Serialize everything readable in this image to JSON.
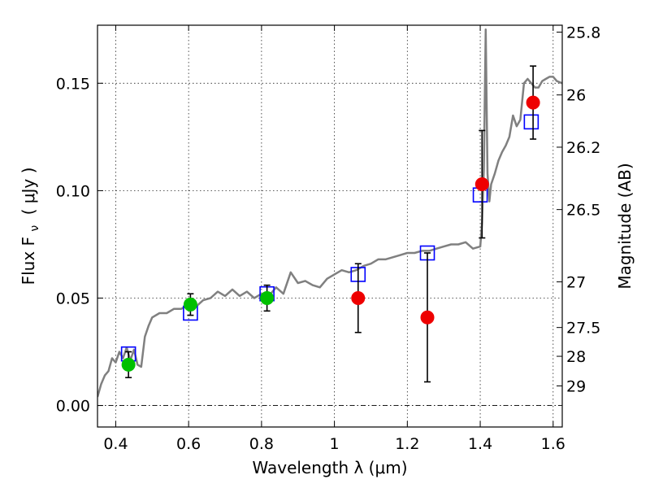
{
  "chart_data": {
    "type": "scatter",
    "xlabel": "Wavelength  λ (μm)",
    "ylabel": "Flux  F",
    "ylabel_sub": "ν",
    "ylabel_unit": "(  μJy )",
    "ylabel_right": "Magnitude (AB)",
    "xlim": [
      0.35,
      1.625
    ],
    "ylim": [
      -0.01,
      0.177
    ],
    "x_ticks": [
      {
        "value": 0.4,
        "label": "0.4"
      },
      {
        "value": 0.6,
        "label": "0.6"
      },
      {
        "value": 0.8,
        "label": "0.8"
      },
      {
        "value": 1.0,
        "label": "1"
      },
      {
        "value": 1.2,
        "label": "1.2"
      },
      {
        "value": 1.4,
        "label": "1.4"
      },
      {
        "value": 1.6,
        "label": "1.6"
      }
    ],
    "y_ticks": [
      {
        "value": 0.0,
        "label": "0.00"
      },
      {
        "value": 0.05,
        "label": "0.05"
      },
      {
        "value": 0.1,
        "label": "0.10"
      },
      {
        "value": 0.15,
        "label": "0.15"
      }
    ],
    "magnitude_ticks": [
      {
        "mag": 25.8,
        "label": "25.8"
      },
      {
        "mag": 26.0,
        "label": "26"
      },
      {
        "mag": 26.2,
        "label": "26.2"
      },
      {
        "mag": 26.5,
        "label": "26.5"
      },
      {
        "mag": 27.0,
        "label": "27"
      },
      {
        "mag": 27.5,
        "label": "27.5"
      },
      {
        "mag": 28.0,
        "label": "28"
      },
      {
        "mag": 29.0,
        "label": "29"
      }
    ],
    "grid": true,
    "zero_line": true,
    "series": [
      {
        "kind": "line",
        "color": "#808080",
        "points": [
          [
            0.35,
            0.004
          ],
          [
            0.36,
            0.01
          ],
          [
            0.37,
            0.014
          ],
          [
            0.38,
            0.016
          ],
          [
            0.39,
            0.022
          ],
          [
            0.4,
            0.02
          ],
          [
            0.41,
            0.025
          ],
          [
            0.42,
            0.022
          ],
          [
            0.43,
            0.027
          ],
          [
            0.44,
            0.021
          ],
          [
            0.45,
            0.026
          ],
          [
            0.46,
            0.019
          ],
          [
            0.47,
            0.018
          ],
          [
            0.48,
            0.032
          ],
          [
            0.49,
            0.037
          ],
          [
            0.5,
            0.041
          ],
          [
            0.52,
            0.043
          ],
          [
            0.54,
            0.043
          ],
          [
            0.56,
            0.045
          ],
          [
            0.58,
            0.045
          ],
          [
            0.6,
            0.047
          ],
          [
            0.62,
            0.046
          ],
          [
            0.64,
            0.049
          ],
          [
            0.66,
            0.05
          ],
          [
            0.68,
            0.053
          ],
          [
            0.7,
            0.051
          ],
          [
            0.72,
            0.054
          ],
          [
            0.74,
            0.051
          ],
          [
            0.76,
            0.053
          ],
          [
            0.78,
            0.05
          ],
          [
            0.8,
            0.052
          ],
          [
            0.82,
            0.051
          ],
          [
            0.84,
            0.055
          ],
          [
            0.86,
            0.052
          ],
          [
            0.88,
            0.062
          ],
          [
            0.9,
            0.057
          ],
          [
            0.92,
            0.058
          ],
          [
            0.94,
            0.056
          ],
          [
            0.96,
            0.055
          ],
          [
            0.98,
            0.059
          ],
          [
            1.0,
            0.061
          ],
          [
            1.02,
            0.063
          ],
          [
            1.04,
            0.062
          ],
          [
            1.06,
            0.063
          ],
          [
            1.08,
            0.065
          ],
          [
            1.1,
            0.066
          ],
          [
            1.12,
            0.068
          ],
          [
            1.14,
            0.068
          ],
          [
            1.16,
            0.069
          ],
          [
            1.18,
            0.07
          ],
          [
            1.2,
            0.071
          ],
          [
            1.22,
            0.071
          ],
          [
            1.24,
            0.072
          ],
          [
            1.26,
            0.072
          ],
          [
            1.28,
            0.073
          ],
          [
            1.3,
            0.074
          ],
          [
            1.32,
            0.075
          ],
          [
            1.34,
            0.075
          ],
          [
            1.36,
            0.076
          ],
          [
            1.38,
            0.073
          ],
          [
            1.4,
            0.074
          ],
          [
            1.405,
            0.085
          ],
          [
            1.41,
            0.11
          ],
          [
            1.415,
            0.175
          ],
          [
            1.42,
            0.108
          ],
          [
            1.425,
            0.095
          ],
          [
            1.43,
            0.103
          ],
          [
            1.44,
            0.108
          ],
          [
            1.45,
            0.114
          ],
          [
            1.46,
            0.118
          ],
          [
            1.47,
            0.121
          ],
          [
            1.48,
            0.125
          ],
          [
            1.49,
            0.135
          ],
          [
            1.5,
            0.13
          ],
          [
            1.51,
            0.133
          ],
          [
            1.52,
            0.15
          ],
          [
            1.53,
            0.152
          ],
          [
            1.54,
            0.15
          ],
          [
            1.55,
            0.148
          ],
          [
            1.56,
            0.148
          ],
          [
            1.57,
            0.151
          ],
          [
            1.58,
            0.152
          ],
          [
            1.59,
            0.153
          ],
          [
            1.6,
            0.153
          ],
          [
            1.61,
            0.151
          ],
          [
            1.625,
            0.15
          ]
        ]
      },
      {
        "kind": "squares",
        "color": "#0000ff",
        "points": [
          [
            0.435,
            0.024
          ],
          [
            0.605,
            0.043
          ],
          [
            0.815,
            0.052
          ],
          [
            1.065,
            0.061
          ],
          [
            1.255,
            0.071
          ],
          [
            1.4,
            0.098
          ],
          [
            1.54,
            0.132
          ]
        ]
      },
      {
        "kind": "circles",
        "color": "#00c000",
        "points": [
          {
            "x": 0.435,
            "y": 0.019,
            "err": 0.006
          },
          {
            "x": 0.605,
            "y": 0.047,
            "err": 0.005
          },
          {
            "x": 0.815,
            "y": 0.05,
            "err": 0.006
          }
        ]
      },
      {
        "kind": "circles",
        "color": "#ee0000",
        "points": [
          {
            "x": 1.065,
            "y": 0.05,
            "err": 0.016
          },
          {
            "x": 1.255,
            "y": 0.041,
            "err": 0.03
          },
          {
            "x": 1.405,
            "y": 0.103,
            "err": 0.025
          },
          {
            "x": 1.545,
            "y": 0.141,
            "err": 0.017
          }
        ]
      }
    ]
  }
}
